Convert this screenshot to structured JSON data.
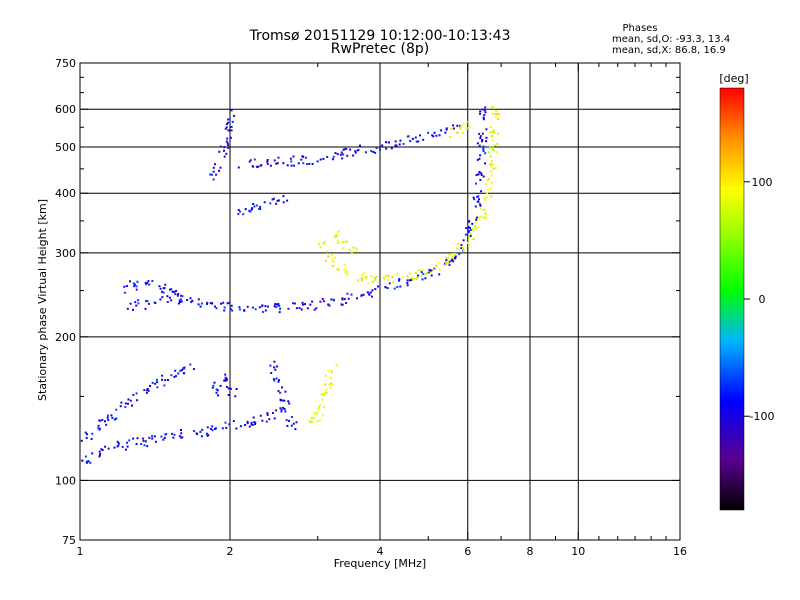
{
  "chart_data": {
    "type": "scatter",
    "title": "Tromsø 20151129 10:12:00-10:13:43",
    "subtitle": "RwPretec (8p)",
    "xlabel": "Frequency [MHz]",
    "ylabel": "Stationary phase Virtual Height [km]",
    "x_scale": "log",
    "y_scale": "log",
    "xlim": [
      1,
      16
    ],
    "ylim": [
      75,
      750
    ],
    "x_ticks": [
      {
        "value": 1,
        "label": "1"
      },
      {
        "value": 2,
        "label": "2"
      },
      {
        "value": 4,
        "label": "4"
      },
      {
        "value": 6,
        "label": "6"
      },
      {
        "value": 8,
        "label": "8"
      },
      {
        "value": 10,
        "label": "10"
      },
      {
        "value": 16,
        "label": "16"
      }
    ],
    "x_minor_ticks": [
      3,
      5,
      7,
      9,
      11,
      12,
      13,
      14,
      15
    ],
    "x_grid": [
      2,
      4,
      6,
      8,
      10
    ],
    "y_ticks": [
      {
        "value": 75,
        "label": "75"
      },
      {
        "value": 100,
        "label": "100"
      },
      {
        "value": 200,
        "label": "200"
      },
      {
        "value": 300,
        "label": "300"
      },
      {
        "value": 400,
        "label": "400"
      },
      {
        "value": 500,
        "label": "500"
      },
      {
        "value": 600,
        "label": "600"
      },
      {
        "value": 750,
        "label": "750"
      }
    ],
    "y_minor_ticks": [
      150,
      250,
      350,
      450,
      550,
      650,
      700
    ],
    "y_grid": [
      100,
      200,
      300,
      400,
      500,
      600
    ],
    "grid": true,
    "legend": {
      "heading": "Phases",
      "line1": "mean, sd,O: -93.3, 13.4",
      "line2": "mean, sd,X:  86.8, 16.9"
    },
    "colorbar": {
      "label": "[deg]",
      "range": [
        -180,
        180
      ],
      "ticks": [
        {
          "value": 100,
          "label": "100"
        },
        {
          "value": 0,
          "label": "0"
        },
        {
          "value": -100,
          "label": "-100"
        }
      ]
    },
    "traces": [
      {
        "mode": "O",
        "phase": -93,
        "points": [
          [
            1.0,
            112
          ],
          [
            1.03,
            110
          ],
          [
            1.06,
            113
          ],
          [
            1.1,
            115
          ],
          [
            1.15,
            118
          ],
          [
            1.2,
            118
          ],
          [
            1.28,
            120
          ],
          [
            1.35,
            120
          ],
          [
            1.45,
            124
          ],
          [
            1.55,
            124
          ],
          [
            1.65,
            126
          ],
          [
            1.75,
            125
          ],
          [
            1.85,
            128
          ],
          [
            2.0,
            130
          ],
          [
            2.2,
            132
          ],
          [
            2.4,
            136
          ],
          [
            2.6,
            140
          ]
        ]
      },
      {
        "mode": "O",
        "phase": -93,
        "points": [
          [
            1.0,
            118
          ],
          [
            1.05,
            125
          ],
          [
            1.12,
            132
          ],
          [
            1.2,
            140
          ],
          [
            1.3,
            150
          ],
          [
            1.4,
            158
          ],
          [
            1.5,
            165
          ],
          [
            1.6,
            170
          ],
          [
            1.7,
            175
          ]
        ]
      },
      {
        "mode": "O",
        "phase": -93,
        "points": [
          [
            1.85,
            150
          ],
          [
            1.9,
            160
          ],
          [
            1.95,
            165
          ],
          [
            2.0,
            158
          ],
          [
            2.05,
            150
          ]
        ]
      },
      {
        "mode": "O",
        "phase": -93,
        "points": [
          [
            2.45,
            175
          ],
          [
            2.5,
            160
          ],
          [
            2.55,
            150
          ],
          [
            2.6,
            140
          ],
          [
            2.65,
            132
          ],
          [
            2.7,
            130
          ]
        ]
      },
      {
        "mode": "O",
        "phase": -93,
        "points": [
          [
            1.25,
            228
          ],
          [
            1.35,
            235
          ],
          [
            1.5,
            240
          ],
          [
            1.7,
            238
          ],
          [
            1.9,
            232
          ],
          [
            2.2,
            230
          ],
          [
            2.5,
            230
          ],
          [
            2.9,
            232
          ],
          [
            3.3,
            238
          ],
          [
            3.7,
            245
          ],
          [
            4.2,
            255
          ],
          [
            4.7,
            265
          ],
          [
            5.2,
            275
          ],
          [
            5.6,
            290
          ],
          [
            5.9,
            310
          ],
          [
            6.1,
            340
          ],
          [
            6.25,
            380
          ],
          [
            6.35,
            440
          ],
          [
            6.42,
            520
          ],
          [
            6.45,
            580
          ],
          [
            6.5,
            620
          ]
        ]
      },
      {
        "mode": "O",
        "phase": -93,
        "points": [
          [
            1.2,
            250
          ],
          [
            1.3,
            258
          ],
          [
            1.4,
            262
          ],
          [
            1.5,
            250
          ],
          [
            1.6,
            245
          ]
        ]
      },
      {
        "mode": "O",
        "phase": -93,
        "points": [
          [
            1.85,
            430
          ],
          [
            1.9,
            470
          ],
          [
            1.95,
            500
          ],
          [
            1.98,
            530
          ],
          [
            2.0,
            560
          ],
          [
            2.02,
            600
          ]
        ]
      },
      {
        "mode": "O",
        "phase": -93,
        "points": [
          [
            2.1,
            460
          ],
          [
            2.3,
            462
          ],
          [
            2.5,
            465
          ],
          [
            2.8,
            468
          ],
          [
            3.1,
            475
          ],
          [
            3.4,
            485
          ],
          [
            3.8,
            495
          ],
          [
            4.2,
            505
          ],
          [
            4.7,
            520
          ],
          [
            5.2,
            535
          ],
          [
            5.7,
            555
          ]
        ]
      },
      {
        "mode": "O",
        "phase": -93,
        "points": [
          [
            2.05,
            365
          ],
          [
            2.2,
            370
          ],
          [
            2.4,
            380
          ],
          [
            2.6,
            395
          ]
        ]
      },
      {
        "mode": "X",
        "phase": 87,
        "points": [
          [
            3.05,
            320
          ],
          [
            3.1,
            305
          ],
          [
            3.2,
            290
          ],
          [
            3.35,
            278
          ],
          [
            3.5,
            270
          ],
          [
            3.8,
            264
          ],
          [
            4.2,
            265
          ],
          [
            4.7,
            270
          ],
          [
            5.2,
            280
          ],
          [
            5.6,
            295
          ],
          [
            6.0,
            315
          ],
          [
            6.3,
            340
          ],
          [
            6.55,
            390
          ],
          [
            6.7,
            450
          ],
          [
            6.78,
            520
          ],
          [
            6.82,
            580
          ],
          [
            6.85,
            625
          ]
        ]
      },
      {
        "mode": "X",
        "phase": 87,
        "points": [
          [
            3.2,
            335
          ],
          [
            3.3,
            325
          ],
          [
            3.45,
            310
          ],
          [
            3.6,
            300
          ]
        ]
      },
      {
        "mode": "X",
        "phase": 87,
        "points": [
          [
            3.05,
            140
          ],
          [
            3.1,
            150
          ],
          [
            3.15,
            160
          ],
          [
            3.2,
            168
          ],
          [
            3.25,
            172
          ]
        ]
      },
      {
        "mode": "X",
        "phase": 87,
        "points": [
          [
            2.9,
            135
          ],
          [
            2.95,
            135
          ],
          [
            3.0,
            136
          ],
          [
            3.05,
            137
          ]
        ]
      },
      {
        "mode": "X",
        "phase": 87,
        "points": [
          [
            5.5,
            530
          ],
          [
            5.7,
            540
          ],
          [
            5.9,
            550
          ],
          [
            6.1,
            560
          ]
        ]
      }
    ]
  }
}
